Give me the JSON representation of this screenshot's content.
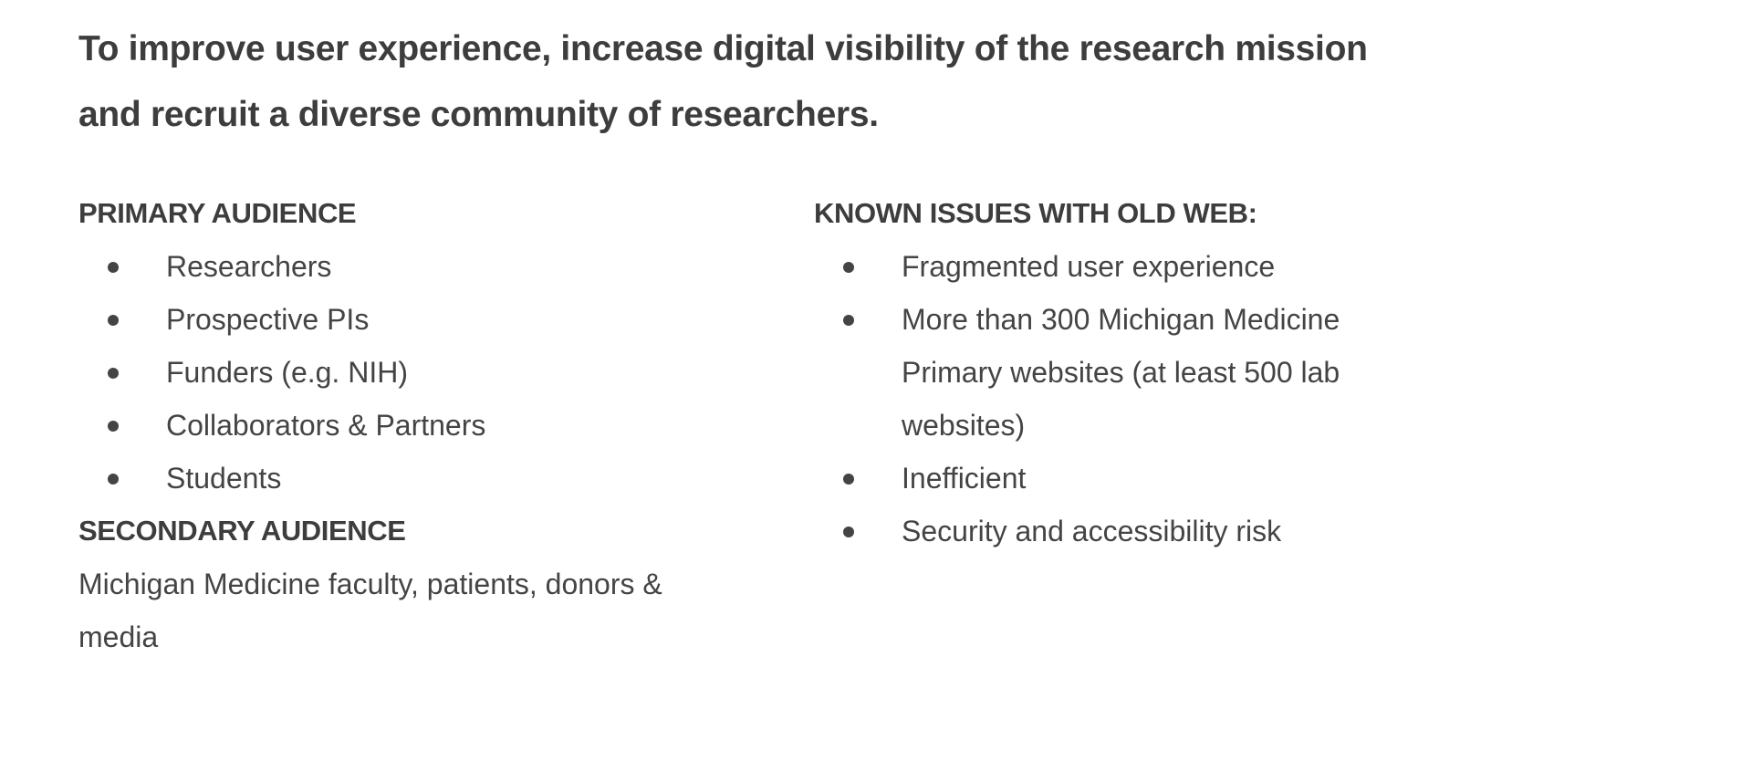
{
  "mission": {
    "line1": "To improve user experience, increase digital visibility of the research mission",
    "line2": "and recruit a diverse community of researchers."
  },
  "primary_audience": {
    "heading": "PRIMARY AUDIENCE",
    "items": [
      "Researchers",
      "Prospective PIs",
      "Funders (e.g. NIH)",
      "Collaborators & Partners",
      "Students"
    ]
  },
  "secondary_audience": {
    "heading": "SECONDARY AUDIENCE",
    "text": "Michigan Medicine faculty, patients, donors & media"
  },
  "known_issues": {
    "heading": "KNOWN ISSUES WITH OLD WEB:",
    "items": [
      "Fragmented user experience",
      "More than 300 Michigan Medicine Primary websites (at least 500 lab websites)",
      "Inefficient",
      "Security and accessibility risk"
    ]
  }
}
